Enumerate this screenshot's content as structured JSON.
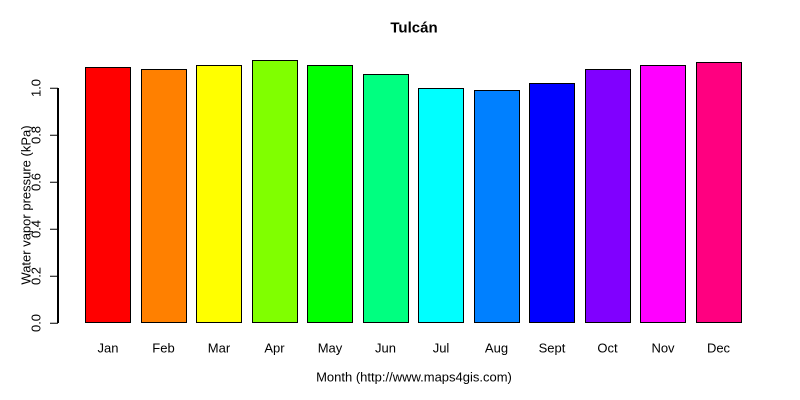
{
  "chart_data": {
    "type": "bar",
    "title": "Tulcán",
    "xlabel": "Month (http://www.maps4gis.com)",
    "ylabel": "Water vapor pressure (kPa)",
    "categories": [
      "Jan",
      "Feb",
      "Mar",
      "Apr",
      "May",
      "Jun",
      "Jul",
      "Aug",
      "Sept",
      "Oct",
      "Nov",
      "Dec"
    ],
    "values": [
      1.09,
      1.08,
      1.1,
      1.12,
      1.1,
      1.06,
      1.0,
      0.99,
      1.02,
      1.08,
      1.1,
      1.11
    ],
    "bar_colors": [
      "#FF0000",
      "#FF8000",
      "#FFFF00",
      "#80FF00",
      "#00FF00",
      "#00FF80",
      "#00FFFF",
      "#0080FF",
      "#0000FF",
      "#8000FF",
      "#FF00FF",
      "#FF0080"
    ],
    "bar_border_color": "#000000",
    "yticks": [
      0.0,
      0.2,
      0.4,
      0.6,
      0.8,
      1.0
    ],
    "ytick_labels": [
      "0.0",
      "0.2",
      "0.4",
      "0.6",
      "0.8",
      "1.0"
    ],
    "ylim": [
      0,
      1.2
    ],
    "grid": false,
    "legend": null,
    "background": "#FFFFFF",
    "text_color": "#000000"
  }
}
